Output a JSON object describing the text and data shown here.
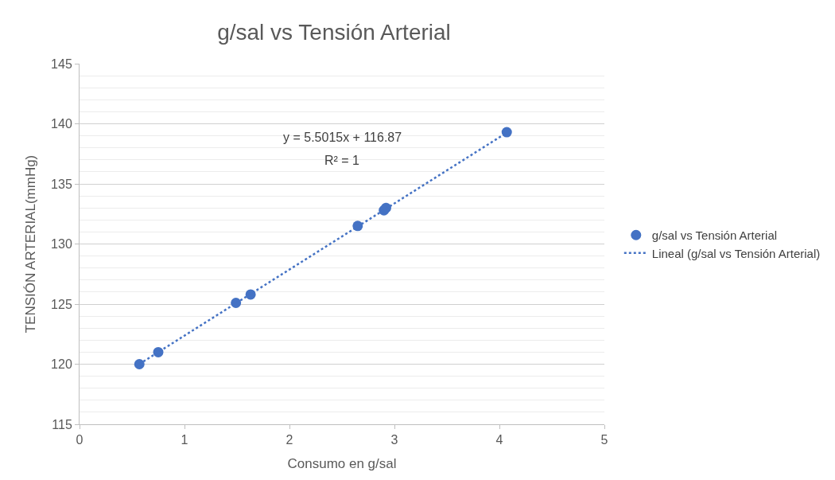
{
  "chart_data": {
    "type": "scatter",
    "title": "g/sal vs Tensión Arterial",
    "xlabel": "Consumo en g/sal",
    "ylabel": "TENSIÓN ARTERIAL(mmHg)",
    "series": [
      {
        "name": "g/sal vs Tensión Arterial",
        "color": "#4472c4",
        "marker": "circle",
        "x": [
          0.57,
          0.75,
          1.49,
          1.63,
          2.65,
          2.9,
          2.92,
          4.07
        ],
        "values": [
          120.0,
          121.0,
          125.1,
          125.8,
          131.5,
          132.8,
          133.0,
          139.3
        ]
      },
      {
        "name": "Lineal (g/sal vs Tensión Arterial)",
        "type": "line",
        "color": "#4472c4",
        "line_style": "dotted",
        "x": [
          0.57,
          4.07
        ],
        "values": [
          120.01,
          139.26
        ]
      }
    ],
    "annotations": [
      "y = 5.5015x + 116.87",
      "R² = 1"
    ],
    "xlim": [
      0,
      5
    ],
    "xticks": [
      0,
      1,
      2,
      3,
      4,
      5
    ],
    "ylim": [
      115,
      145
    ],
    "yticks": [
      115,
      120,
      125,
      130,
      135,
      140,
      145
    ],
    "grid": "y",
    "legend": "right"
  }
}
